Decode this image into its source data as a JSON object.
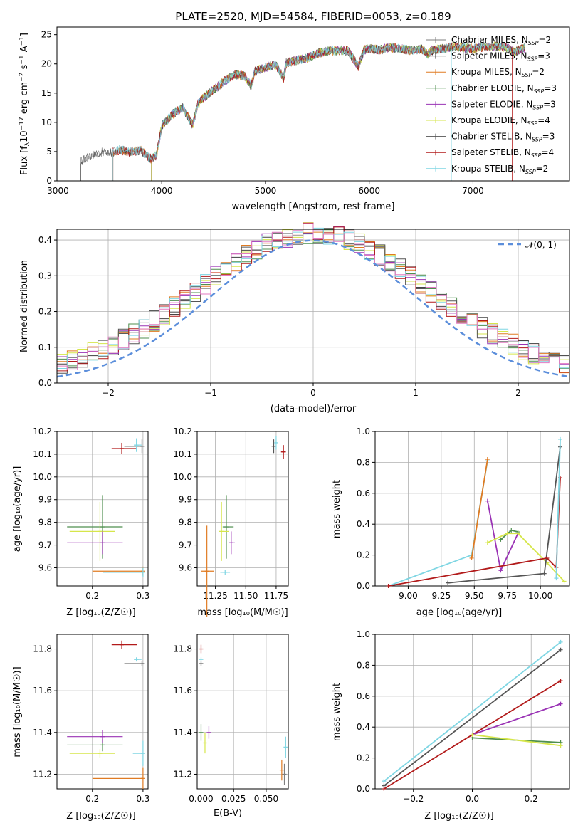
{
  "colors": {
    "series": [
      "#7f7f7f",
      "#222222",
      "#e07b22",
      "#4f8f4f",
      "#9a33b5",
      "#d6e64b",
      "#555555",
      "#b21a1a",
      "#7fd6e3"
    ],
    "normal_line": "#5b8edb",
    "hist": [
      "#444444",
      "#e07b22",
      "#4f8f4f",
      "#9a33b5",
      "#d6e64b",
      "#555555",
      "#b21a1a",
      "#7fd6e3",
      "#e37ac2"
    ]
  },
  "chart_data": [
    {
      "type": "line",
      "title": "PLATE=2520, MJD=54584, FIBERID=0053, z=0.189",
      "xlabel": "wavelength [Angstrom, rest frame]",
      "ylabel": "Flux [f_λ10⁻¹⁷ erg cm⁻² s⁻¹ A⁻¹]",
      "xlim": [
        2990,
        7930
      ],
      "ylim": [
        0,
        26.3
      ],
      "xticks": [
        3000,
        4000,
        5000,
        6000,
        7000
      ],
      "yticks": [
        0,
        5,
        10,
        15,
        20,
        25
      ],
      "spectrum_x": [
        3220,
        3300,
        3400,
        3500,
        3600,
        3700,
        3800,
        3900,
        3950,
        4000,
        4100,
        4200,
        4300,
        4350,
        4400,
        4500,
        4600,
        4700,
        4800,
        4861,
        4900,
        5000,
        5100,
        5175,
        5200,
        5300,
        5400,
        5500,
        5600,
        5700,
        5800,
        5893,
        5950,
        6000,
        6100,
        6200,
        6300,
        6400,
        6500,
        6563,
        6600,
        6700,
        6800,
        6900,
        7000,
        7100,
        7200,
        7300,
        7400,
        7500
      ],
      "spectrum_y": [
        3.3,
        4.2,
        4.9,
        4.8,
        5.3,
        4.9,
        5.2,
        3.7,
        4.4,
        9.4,
        11.3,
        12.6,
        9.6,
        13.2,
        14.2,
        15.6,
        17.0,
        18.2,
        17.9,
        16.2,
        18.8,
        19.4,
        19.8,
        17.6,
        20.2,
        20.6,
        21.0,
        21.8,
        22.2,
        22.3,
        22.2,
        19.5,
        22.4,
        22.6,
        22.4,
        22.8,
        22.6,
        22.3,
        22.6,
        21.6,
        22.3,
        22.6,
        22.9,
        22.8,
        22.6,
        22.9,
        23.0,
        22.9,
        22.1,
        22.8
      ],
      "series": [
        {
          "name": "Chabrier MILES, N_SSP=2",
          "label": "Chabrier MILES, N",
          "sub": "SSP",
          "count": "=2",
          "x_start": 3220
        },
        {
          "name": "Salpeter MILES, N_SSP=3",
          "label": "Salpeter MILES, N",
          "sub": "SSP",
          "count": "=3",
          "x_start": 3530
        },
        {
          "name": "Kroupa MILES, N_SSP=2",
          "label": "Kroupa MILES, N",
          "sub": "SSP",
          "count": "=2",
          "x_start": 3530
        },
        {
          "name": "Chabrier ELODIE, N_SSP=3",
          "label": "Chabrier ELODIE, N",
          "sub": "SSP",
          "count": "=3",
          "x_start": 3900
        },
        {
          "name": "Salpeter ELODIE, N_SSP=3",
          "label": "Salpeter ELODIE, N",
          "sub": "SSP",
          "count": "=3",
          "x_start": 3900
        },
        {
          "name": "Kroupa ELODIE, N_SSP=4",
          "label": "Kroupa ELODIE, N",
          "sub": "SSP",
          "count": "=4",
          "x_start": 3900
        },
        {
          "name": "Chabrier STELIB, N_SSP=3",
          "label": "Chabrier STELIB, N",
          "sub": "SSP",
          "count": "=3",
          "x_start": 3220
        },
        {
          "name": "Salpeter STELIB, N_SSP=4",
          "label": "Salpeter STELIB, N",
          "sub": "SSP",
          "count": "=4",
          "x_start": 3530
        },
        {
          "name": "Kroupa STELIB, N_SSP=2",
          "label": "Kroupa STELIB, N",
          "sub": "SSP",
          "count": "=2",
          "x_start": 3530
        }
      ]
    },
    {
      "type": "bar",
      "xlabel": "(data-model)/error",
      "ylabel": "Normed distribution",
      "xlim": [
        -2.5,
        2.5
      ],
      "ylim": [
        0,
        0.43
      ],
      "xticks": [
        -2,
        -1,
        0,
        1,
        2
      ],
      "yticks": [
        0.0,
        0.1,
        0.2,
        0.3,
        0.4
      ],
      "bin_width": 0.1,
      "histogram_profile": [
        0.04,
        0.05,
        0.06,
        0.07,
        0.07,
        0.08,
        0.09,
        0.1,
        0.11,
        0.12,
        0.13,
        0.15,
        0.16,
        0.18,
        0.19,
        0.21,
        0.22,
        0.24,
        0.26,
        0.27,
        0.29,
        0.3,
        0.32,
        0.33,
        0.34,
        0.35,
        0.36,
        0.37,
        0.38,
        0.38,
        0.39,
        0.38,
        0.38,
        0.37,
        0.36,
        0.35,
        0.34,
        0.33,
        0.31,
        0.3,
        0.28,
        0.27,
        0.25,
        0.24,
        0.22,
        0.21,
        0.19,
        0.18,
        0.16,
        0.15,
        0.13,
        0.12,
        0.11,
        0.1,
        0.09,
        0.08,
        0.07,
        0.07,
        0.06,
        0.05
      ],
      "legend": {
        "label": "𝒩(0, 1)",
        "position": "top-right"
      }
    },
    {
      "type": "scatter",
      "xlabel": "Z [log₁₀(Z/Z☉)]",
      "ylabel": "age  [log₁₀(age/yr)]",
      "xlim": [
        0.13,
        0.31
      ],
      "ylim": [
        9.52,
        10.2
      ],
      "xticks": [
        0.2,
        0.3
      ],
      "yticks": [
        9.6,
        9.7,
        9.8,
        9.9,
        10.0,
        10.1,
        10.2
      ],
      "points": [
        {
          "x": 0.298,
          "y": 10.135,
          "xerr": [
            0.035,
            0.0
          ],
          "yerr": 0.03,
          "c": 6
        },
        {
          "x": 0.258,
          "y": 10.125,
          "xerr": [
            0.02,
            0.03
          ],
          "yerr": 0.025,
          "c": 7
        },
        {
          "x": 0.287,
          "y": 10.14,
          "xerr": [
            0.005,
            0.01
          ],
          "yerr": 0.03,
          "c": 8
        },
        {
          "x": 0.22,
          "y": 9.78,
          "xerr": [
            0.07,
            0.04
          ],
          "yerr": 0.14,
          "c": 3
        },
        {
          "x": 0.215,
          "y": 9.76,
          "xerr": [
            0.06,
            0.03
          ],
          "yerr": 0.13,
          "c": 5
        },
        {
          "x": 0.22,
          "y": 9.71,
          "xerr": [
            0.07,
            0.04
          ],
          "yerr": 0.05,
          "c": 4
        },
        {
          "x": 0.3,
          "y": 9.585,
          "xerr": [
            0.1,
            0.0
          ],
          "yerr": 0.02,
          "c": 2
        },
        {
          "x": 0.3,
          "y": 9.58,
          "xerr": [
            0.08,
            0.0
          ],
          "yerr": 0.02,
          "c": 8
        }
      ]
    },
    {
      "type": "scatter",
      "xlabel": "mass [log₁₀(M/M☉)]",
      "xlim": [
        11.1,
        11.85
      ],
      "ylim": [
        9.52,
        10.2
      ],
      "xticks": [
        11.25,
        11.5,
        11.75
      ],
      "yticks": [
        9.6,
        9.7,
        9.8,
        9.9,
        10.0,
        10.1,
        10.2
      ],
      "points": [
        {
          "x": 11.73,
          "y": 10.135,
          "xerr": [
            0.01,
            0.01
          ],
          "yerr": 0.03,
          "c": 6
        },
        {
          "x": 11.81,
          "y": 10.11,
          "xerr": [
            0.02,
            0.02
          ],
          "yerr": 0.03,
          "c": 7
        },
        {
          "x": 11.75,
          "y": 10.15,
          "xerr": [
            0.01,
            0.01
          ],
          "yerr": 0.03,
          "c": 8
        },
        {
          "x": 11.34,
          "y": 9.78,
          "xerr": [
            0.03,
            0.06
          ],
          "yerr": 0.14,
          "c": 3
        },
        {
          "x": 11.3,
          "y": 9.76,
          "xerr": [
            0.02,
            0.06
          ],
          "yerr": 0.13,
          "c": 5
        },
        {
          "x": 11.38,
          "y": 9.71,
          "xerr": [
            0.02,
            0.03
          ],
          "yerr": 0.05,
          "c": 4
        },
        {
          "x": 11.18,
          "y": 9.585,
          "xerr": [
            0.05,
            0.06
          ],
          "yerr": 0.2,
          "c": 2
        },
        {
          "x": 11.33,
          "y": 9.58,
          "xerr": [
            0.04,
            0.04
          ],
          "yerr": 0.01,
          "c": 8
        }
      ]
    },
    {
      "type": "line",
      "xlabel": "age  [log₁₀(age/yr)]",
      "ylabel": "mass weight",
      "xlim": [
        8.75,
        10.22
      ],
      "ylim": [
        0,
        1.0
      ],
      "xticks": [
        9.0,
        9.25,
        9.5,
        9.75,
        10.0
      ],
      "yticks": [
        0.0,
        0.2,
        0.4,
        0.6,
        0.8,
        1.0
      ],
      "series": [
        {
          "c": 8,
          "x": [
            8.85,
            9.48,
            9.6
          ],
          "y": [
            0.0,
            0.2,
            0.81
          ]
        },
        {
          "c": 2,
          "x": [
            9.48,
            9.6
          ],
          "y": [
            0.18,
            0.82
          ]
        },
        {
          "c": 4,
          "x": [
            9.6,
            9.7,
            9.83
          ],
          "y": [
            0.55,
            0.1,
            0.34
          ]
        },
        {
          "c": 3,
          "x": [
            9.7,
            9.78,
            9.83
          ],
          "y": [
            0.3,
            0.36,
            0.35
          ]
        },
        {
          "c": 5,
          "x": [
            9.6,
            9.75,
            9.83,
            10.05,
            10.18
          ],
          "y": [
            0.28,
            0.34,
            0.34,
            0.15,
            0.03
          ]
        },
        {
          "c": 6,
          "x": [
            9.3,
            10.03,
            10.15
          ],
          "y": [
            0.02,
            0.08,
            0.9
          ]
        },
        {
          "c": 7,
          "x": [
            8.85,
            10.05,
            10.12,
            10.15
          ],
          "y": [
            0.0,
            0.18,
            0.12,
            0.7
          ]
        },
        {
          "c": 8,
          "x": [
            10.12,
            10.15
          ],
          "y": [
            0.05,
            0.95
          ]
        }
      ]
    },
    {
      "type": "scatter",
      "xlabel": "Z [log₁₀(Z/Z☉)]",
      "ylabel": "mass [log₁₀(M/M☉)]",
      "xlim": [
        0.13,
        0.31
      ],
      "ylim": [
        11.13,
        11.87
      ],
      "xticks": [
        0.2,
        0.3
      ],
      "yticks": [
        11.2,
        11.4,
        11.6,
        11.8
      ],
      "points": [
        {
          "x": 0.298,
          "y": 11.73,
          "xerr": [
            0.035,
            0.0
          ],
          "yerr": 0.01,
          "c": 6
        },
        {
          "x": 0.258,
          "y": 11.82,
          "xerr": [
            0.02,
            0.03
          ],
          "yerr": 0.02,
          "c": 7
        },
        {
          "x": 0.287,
          "y": 11.75,
          "xerr": [
            0.005,
            0.01
          ],
          "yerr": 0.01,
          "c": 8
        },
        {
          "x": 0.22,
          "y": 11.34,
          "xerr": [
            0.07,
            0.04
          ],
          "yerr": 0.03,
          "c": 3
        },
        {
          "x": 0.215,
          "y": 11.3,
          "xerr": [
            0.06,
            0.03
          ],
          "yerr": 0.02,
          "c": 5
        },
        {
          "x": 0.22,
          "y": 11.38,
          "xerr": [
            0.07,
            0.04
          ],
          "yerr": 0.03,
          "c": 4
        },
        {
          "x": 0.3,
          "y": 11.18,
          "xerr": [
            0.1,
            0.0
          ],
          "yerr": 0.05,
          "c": 2
        },
        {
          "x": 0.3,
          "y": 11.3,
          "xerr": [
            0.02,
            0.0
          ],
          "yerr": 0.06,
          "c": 8
        }
      ]
    },
    {
      "type": "scatter",
      "xlabel": "E(B-V)",
      "xlim": [
        -0.003,
        0.067
      ],
      "ylim": [
        11.13,
        11.87
      ],
      "xticks": [
        0.0,
        0.025,
        0.05
      ],
      "xticklabels": [
        "0.000",
        "0.025",
        "0.050"
      ],
      "yticks": [
        11.2,
        11.4,
        11.6,
        11.8
      ],
      "points": [
        {
          "x": 0.0,
          "y": 11.73,
          "yerr": 0.01,
          "c": 6
        },
        {
          "x": 0.0,
          "y": 11.8,
          "yerr": 0.02,
          "c": 7
        },
        {
          "x": 0.0,
          "y": 11.75,
          "yerr": 0.01,
          "c": 8
        },
        {
          "x": 0.0,
          "y": 11.4,
          "yerr": 0.04,
          "c": 3
        },
        {
          "x": 0.003,
          "y": 11.35,
          "yerr": 0.05,
          "c": 5
        },
        {
          "x": 0.006,
          "y": 11.4,
          "yerr": 0.03,
          "c": 4
        },
        {
          "x": 0.062,
          "y": 11.22,
          "yerr": 0.05,
          "c": 2
        },
        {
          "x": 0.064,
          "y": 11.2,
          "yerr": 0.05,
          "c": 0
        },
        {
          "x": 0.065,
          "y": 11.33,
          "yerr": 0.05,
          "c": 8
        }
      ]
    },
    {
      "type": "line",
      "xlabel": "Z [log₁₀(Z/Z☉)]",
      "ylabel": "mass weight",
      "xlim": [
        -0.33,
        0.33
      ],
      "ylim": [
        0,
        1.0
      ],
      "xticks": [
        -0.2,
        0.0,
        0.2
      ],
      "yticks": [
        0.0,
        0.2,
        0.4,
        0.6,
        0.8,
        1.0
      ],
      "series": [
        {
          "c": 8,
          "x": [
            -0.3,
            0.3
          ],
          "y": [
            0.05,
            0.95
          ]
        },
        {
          "c": 6,
          "x": [
            -0.3,
            0.3
          ],
          "y": [
            0.02,
            0.9
          ]
        },
        {
          "c": 7,
          "x": [
            -0.3,
            0.3
          ],
          "y": [
            0.0,
            0.7
          ]
        },
        {
          "c": 4,
          "x": [
            0.0,
            0.3
          ],
          "y": [
            0.35,
            0.55
          ]
        },
        {
          "c": 3,
          "x": [
            0.0,
            0.3
          ],
          "y": [
            0.33,
            0.3
          ]
        },
        {
          "c": 5,
          "x": [
            0.0,
            0.3
          ],
          "y": [
            0.35,
            0.28
          ]
        }
      ]
    }
  ]
}
